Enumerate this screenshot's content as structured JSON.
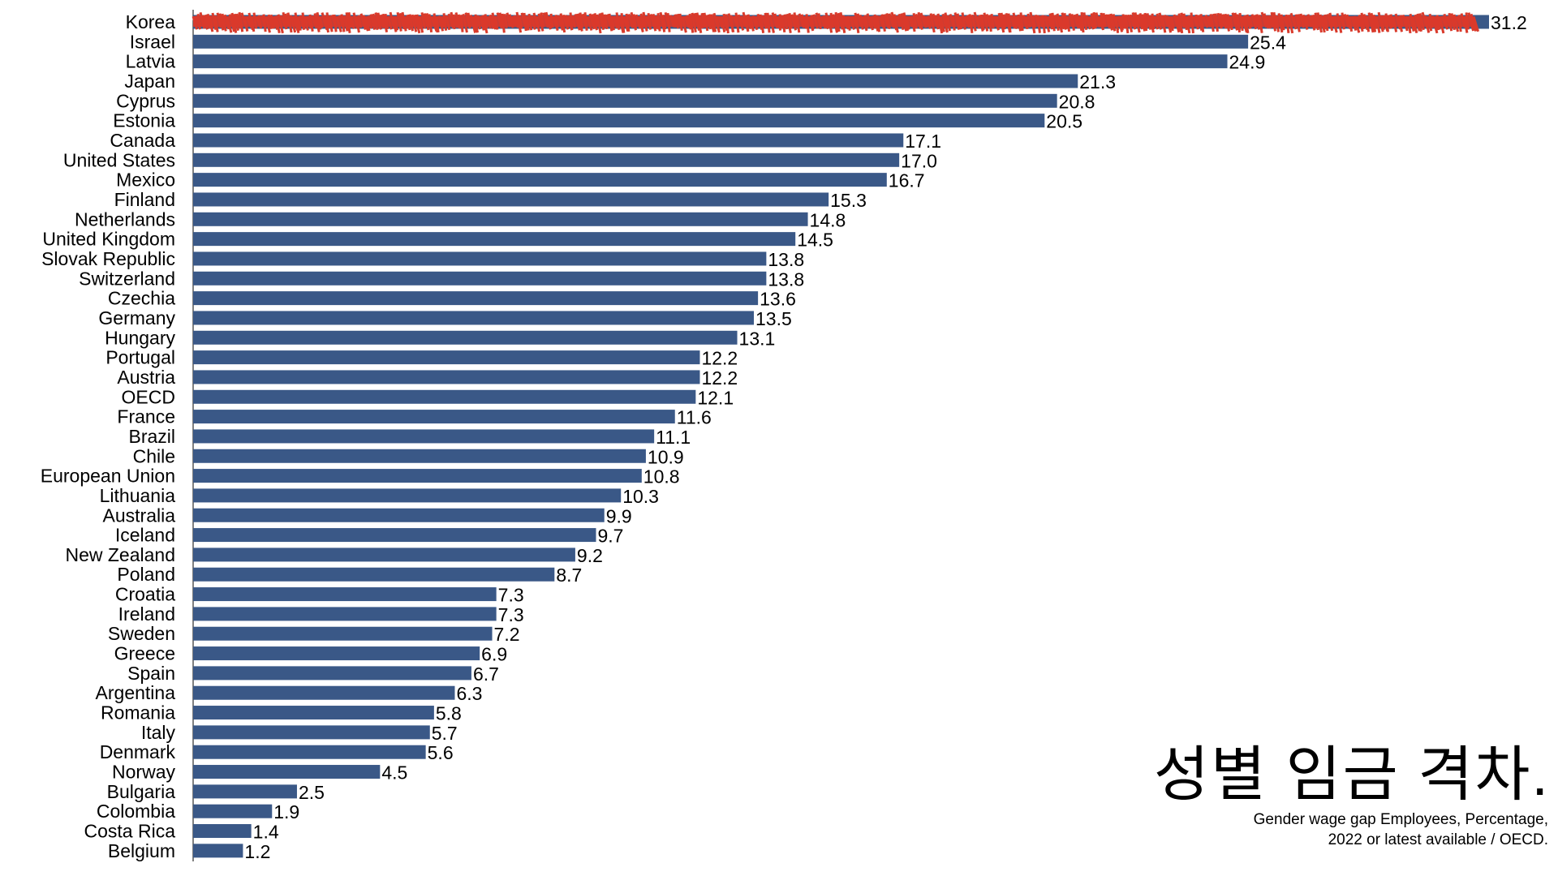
{
  "chart_data": {
    "type": "bar",
    "orientation": "horizontal",
    "title": "성별 임금 격차.",
    "subtitle_line1": "Gender wage gap Employees, Percentage,",
    "subtitle_line2": "2022 or latest available  / OECD.",
    "xlim": [
      0,
      31.2
    ],
    "bar_color": "#3a5887",
    "highlight_color": "#d93a2b",
    "highlight_category": "Korea",
    "categories": [
      "Korea",
      "Israel",
      "Latvia",
      "Japan",
      "Cyprus",
      "Estonia",
      "Canada",
      "United States",
      "Mexico",
      "Finland",
      "Netherlands",
      "United Kingdom",
      "Slovak Republic",
      "Switzerland",
      "Czechia",
      "Germany",
      "Hungary",
      "Portugal",
      "Austria",
      "OECD",
      "France",
      "Brazil",
      "Chile",
      "European Union",
      "Lithuania",
      "Australia",
      "Iceland",
      "New Zealand",
      "Poland",
      "Croatia",
      "Ireland",
      "Sweden",
      "Greece",
      "Spain",
      "Argentina",
      "Romania",
      "Italy",
      "Denmark",
      "Norway",
      "Bulgaria",
      "Colombia",
      "Costa Rica",
      "Belgium"
    ],
    "values": [
      31.2,
      25.4,
      24.9,
      21.3,
      20.8,
      20.5,
      17.1,
      17.0,
      16.7,
      15.3,
      14.8,
      14.5,
      13.8,
      13.8,
      13.6,
      13.5,
      13.1,
      12.2,
      12.2,
      12.1,
      11.6,
      11.1,
      10.9,
      10.8,
      10.3,
      9.9,
      9.7,
      9.2,
      8.7,
      7.3,
      7.3,
      7.2,
      6.9,
      6.7,
      6.3,
      5.8,
      5.7,
      5.6,
      4.5,
      2.5,
      1.9,
      1.4,
      1.2
    ],
    "value_labels": [
      "31.2",
      "25.4",
      "24.9",
      "21.3",
      "20.8",
      "20.5",
      "17.1",
      "17.0",
      "16.7",
      "15.3",
      "14.8",
      "14.5",
      "13.8",
      "13.8",
      "13.6",
      "13.5",
      "13.1",
      "12.2",
      "12.2",
      "12.1",
      "11.6",
      "11.1",
      "10.9",
      "10.8",
      "10.3",
      "9.9",
      "9.7",
      "9.2",
      "8.7",
      "7.3",
      "7.3",
      "7.2",
      "6.9",
      "6.7",
      "6.3",
      "5.8",
      "5.7",
      "5.6",
      "4.5",
      "2.5",
      "1.9",
      "1.4",
      "1.2"
    ]
  }
}
